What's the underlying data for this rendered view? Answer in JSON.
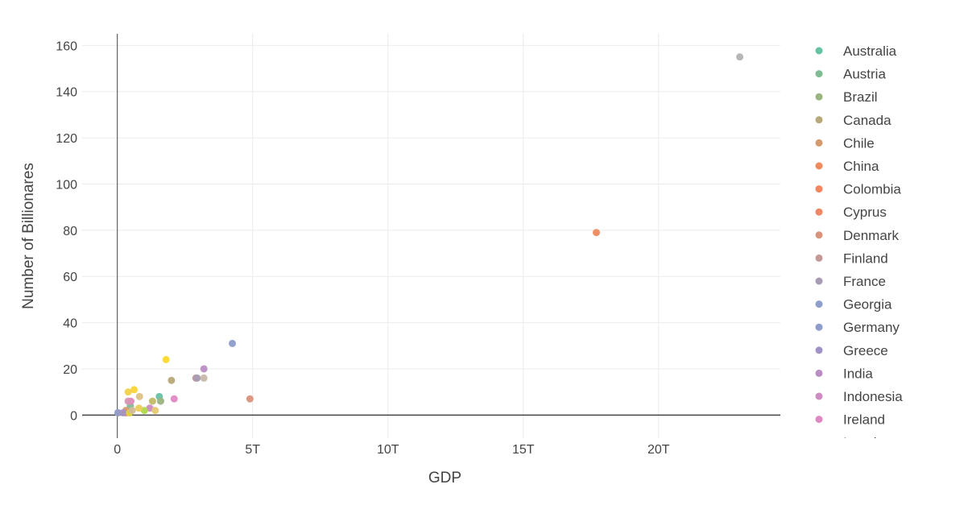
{
  "chart_data": {
    "type": "scatter",
    "xlabel": "GDP",
    "ylabel": "Number of Billionares",
    "xlim": [
      -1300000000000.0,
      24500000000000.0
    ],
    "ylim": [
      -10,
      165
    ],
    "xticks": [
      {
        "value": 0,
        "label": "0"
      },
      {
        "value": 5000000000000.0,
        "label": "5T"
      },
      {
        "value": 10000000000000.0,
        "label": "10T"
      },
      {
        "value": 15000000000000.0,
        "label": "15T"
      },
      {
        "value": 20000000000000.0,
        "label": "20T"
      }
    ],
    "yticks": [
      {
        "value": 0,
        "label": "0"
      },
      {
        "value": 20,
        "label": "20"
      },
      {
        "value": 40,
        "label": "40"
      },
      {
        "value": 60,
        "label": "60"
      },
      {
        "value": 80,
        "label": "80"
      },
      {
        "value": 100,
        "label": "100"
      },
      {
        "value": 120,
        "label": "120"
      },
      {
        "value": 140,
        "label": "140"
      },
      {
        "value": 160,
        "label": "160"
      }
    ],
    "grid": true,
    "legend_position": "right",
    "series": [
      {
        "name": "Australia",
        "color": "#66c2a5",
        "points": [
          [
            1550000000000.0,
            8
          ]
        ]
      },
      {
        "name": "Austria",
        "color": "#7fbc93",
        "points": [
          [
            480000000000.0,
            4
          ]
        ]
      },
      {
        "name": "Brazil",
        "color": "#99b581",
        "points": [
          [
            1600000000000.0,
            6
          ]
        ]
      },
      {
        "name": "Canada",
        "color": "#b8a97a",
        "points": [
          [
            2000000000000.0,
            15
          ]
        ]
      },
      {
        "name": "Chile",
        "color": "#d59a6e",
        "points": [
          [
            320000000000.0,
            2
          ]
        ]
      },
      {
        "name": "China",
        "color": "#ef8a5f",
        "points": [
          [
            17700000000000.0,
            79
          ]
        ]
      },
      {
        "name": "Colombia",
        "color": "#f5855f",
        "points": [
          [
            310000000000.0,
            1
          ]
        ]
      },
      {
        "name": "Cyprus",
        "color": "#ef8862",
        "points": [
          [
            30000000000.0,
            1
          ]
        ]
      },
      {
        "name": "Denmark",
        "color": "#d9927c",
        "points": [
          [
            4900000000000.0,
            7
          ]
        ]
      },
      {
        "name": "Finland",
        "color": "#c49a98",
        "points": [
          [
            2900000000000.0,
            16
          ]
        ]
      },
      {
        "name": "France",
        "color": "#a89cb4",
        "points": [
          [
            2950000000000.0,
            16
          ]
        ]
      },
      {
        "name": "Georgia",
        "color": "#8f9fcc",
        "points": [
          [
            20000000000.0,
            1
          ]
        ]
      },
      {
        "name": "Germany",
        "color": "#8d9ccb",
        "points": [
          [
            4250000000000.0,
            31
          ]
        ]
      },
      {
        "name": "Greece",
        "color": "#a293c6",
        "points": [
          [
            220000000000.0,
            1
          ]
        ]
      },
      {
        "name": "India",
        "color": "#bb8dc5",
        "points": [
          [
            3200000000000.0,
            20
          ]
        ]
      },
      {
        "name": "Indonesia",
        "color": "#ce8bc2",
        "points": [
          [
            1200000000000.0,
            3
          ]
        ]
      },
      {
        "name": "Ireland",
        "color": "#e08ac3",
        "points": [
          [
            500000000000.0,
            6
          ],
          [
            2100000000000.0,
            7
          ]
        ]
      },
      {
        "name": "Israel",
        "color": "#d896b5",
        "points": [
          [
            400000000000.0,
            6
          ]
        ]
      },
      {
        "name": "",
        "color": "#c1ba67",
        "points": [
          [
            1300000000000.0,
            6
          ]
        ]
      },
      {
        "name": "",
        "color": "#aed84b",
        "points": [
          [
            1000000000000.0,
            2
          ]
        ]
      },
      {
        "name": "",
        "color": "#ddd639",
        "points": [
          [
            450000000000.0,
            1
          ]
        ]
      },
      {
        "name": "",
        "color": "#ffd92f",
        "points": [
          [
            1800000000000.0,
            24
          ]
        ]
      },
      {
        "name": "",
        "color": "#f9d43a",
        "points": [
          [
            620000000000.0,
            11
          ]
        ]
      },
      {
        "name": "",
        "color": "#f2d14a",
        "points": [
          [
            400000000000.0,
            10
          ]
        ]
      },
      {
        "name": "",
        "color": "#ecce5c",
        "points": [
          [
            800000000000.0,
            3
          ]
        ]
      },
      {
        "name": "",
        "color": "#e4c770",
        "points": [
          [
            1400000000000.0,
            2
          ]
        ]
      },
      {
        "name": "",
        "color": "#dcc285",
        "points": [
          [
            820000000000.0,
            8
          ]
        ]
      },
      {
        "name": "",
        "color": "#d2bd98",
        "points": [
          [
            550000000000.0,
            2
          ]
        ]
      },
      {
        "name": "",
        "color": "#c8b9aa",
        "points": [
          [
            3200000000000.0,
            16
          ]
        ]
      },
      {
        "name": "",
        "color": "#b3b3b3",
        "points": [
          [
            23000000000000.0,
            155
          ]
        ]
      }
    ]
  }
}
